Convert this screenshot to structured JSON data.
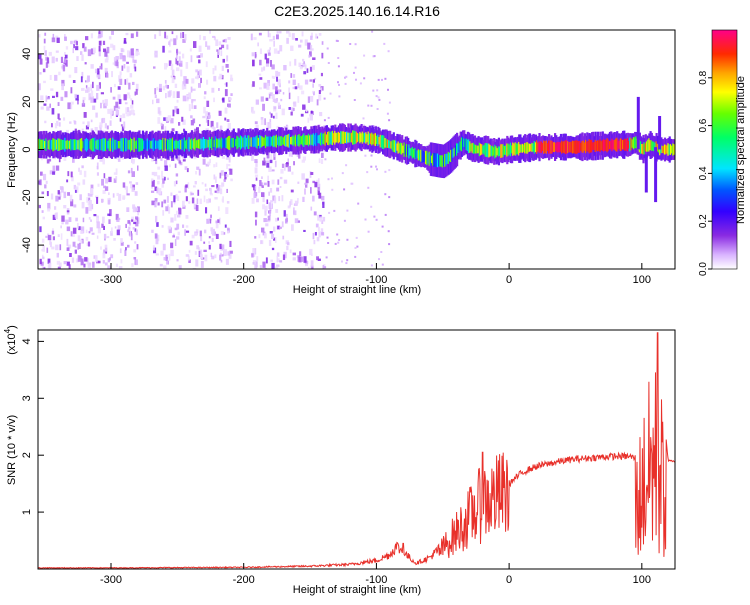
{
  "title": "C2E3.2025.140.16.14.R16",
  "chart_data": [
    {
      "type": "heatmap",
      "title": "C2E3.2025.140.16.14.R16",
      "xlabel": "Height of straight line (km)",
      "ylabel": "Frequency (Hz)",
      "xlim": [
        -355,
        125
      ],
      "ylim": [
        -50,
        50
      ],
      "x_ticks": [
        -300,
        -200,
        -100,
        0,
        100
      ],
      "y_ticks": [
        -40,
        -20,
        0,
        20,
        40
      ],
      "colorbar": {
        "label": "Normalized spectral amplitude",
        "range": [
          0,
          1
        ],
        "ticks": [
          0.0,
          0.2,
          0.4,
          0.6,
          0.8
        ],
        "colors": [
          "#ffffff",
          "#d9b3ff",
          "#8a2be2",
          "#3300ff",
          "#0055ff",
          "#00e5ff",
          "#00ff66",
          "#66ff00",
          "#ffff00",
          "#ffa500",
          "#ff2a00",
          "#ff0088"
        ]
      },
      "ridge_line": {
        "x": [
          -355,
          -300,
          -250,
          -200,
          -150,
          -130,
          -110,
          -100,
          -90,
          -80,
          -70,
          -60,
          -50,
          -45,
          -40,
          -35,
          -30,
          -25,
          -20,
          -10,
          0,
          20,
          50,
          80,
          90,
          95,
          100,
          105,
          110,
          115,
          125
        ],
        "y": [
          2,
          2,
          2,
          3,
          4,
          5,
          5,
          4,
          2,
          0,
          -2,
          -4,
          -5,
          -3,
          0,
          3,
          1,
          0,
          0,
          -1,
          0,
          1,
          1,
          2,
          2,
          3,
          0,
          2,
          1,
          0,
          0
        ]
      },
      "noise_bands": [
        [
          -355,
          -280
        ],
        [
          -270,
          -210
        ],
        [
          -195,
          -140
        ]
      ]
    },
    {
      "type": "line",
      "xlabel": "Height of straight line (km)",
      "ylabel": "SNR (10 * v/v)",
      "multiplier_label": "(x10",
      "multiplier_exp": "4",
      "xlim": [
        -355,
        125
      ],
      "ylim": [
        0,
        4.2
      ],
      "x_ticks": [
        -300,
        -200,
        -100,
        0,
        100
      ],
      "y_ticks": [
        1,
        2,
        3,
        4
      ],
      "color": "#e8302a",
      "envelope": {
        "x": [
          -355,
          -300,
          -200,
          -150,
          -120,
          -100,
          -90,
          -85,
          -80,
          -70,
          -60,
          -50,
          -40,
          -30,
          -20,
          -10,
          0,
          10,
          20,
          30,
          40,
          50,
          60,
          70,
          80,
          85,
          90,
          95,
          100,
          105,
          110,
          115,
          120,
          125
        ],
        "y": [
          0.02,
          0.02,
          0.03,
          0.05,
          0.08,
          0.15,
          0.25,
          0.4,
          0.3,
          0.1,
          0.2,
          0.4,
          0.7,
          1.0,
          1.3,
          1.4,
          1.5,
          1.7,
          1.8,
          1.85,
          1.9,
          1.93,
          1.95,
          1.97,
          1.98,
          1.98,
          1.98,
          1.95,
          2.6,
          3.2,
          3.6,
          3.0,
          1.9,
          1.88
        ]
      },
      "peaks": [
        {
          "x": -20,
          "y": 2.05
        },
        {
          "x": -80,
          "y": 0.45
        },
        {
          "x": 112,
          "y": 4.15
        }
      ]
    }
  ]
}
